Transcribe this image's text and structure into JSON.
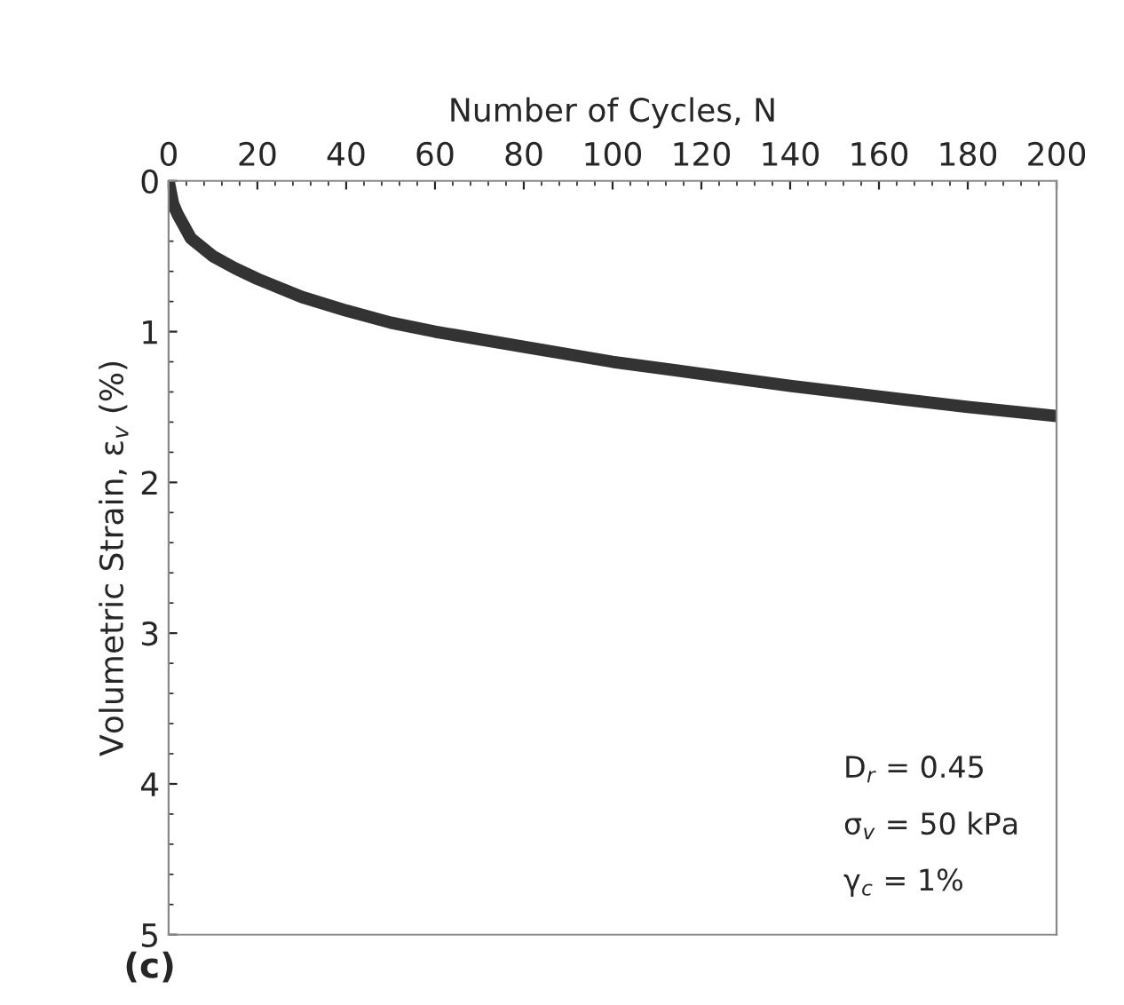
{
  "chart_data": {
    "type": "line",
    "xlabel": "Number of Cycles, N",
    "ylabel": "Volumetric Strain, ε$_{v}$ (%)",
    "x": [
      0,
      1,
      2,
      5,
      10,
      15,
      20,
      30,
      40,
      50,
      60,
      80,
      100,
      120,
      140,
      160,
      180,
      200
    ],
    "series": [
      {
        "color": "#333333",
        "values": [
          0,
          0.15,
          0.22,
          0.38,
          0.5,
          0.58,
          0.65,
          0.77,
          0.86,
          0.94,
          1.0,
          1.1,
          1.2,
          1.28,
          1.36,
          1.43,
          1.5,
          1.56
        ]
      }
    ],
    "xlim": [
      0,
      200
    ],
    "xticks": [
      0,
      20,
      40,
      60,
      80,
      100,
      120,
      140,
      160,
      180,
      200
    ],
    "ylim": [
      5,
      0
    ],
    "yticks": [
      0,
      1,
      2,
      3,
      4,
      5
    ],
    "grid": false,
    "legend": false,
    "annotations": [
      "D$_{r}$ = 0.45",
      "σ$_{v}$ = 50 kPa",
      "γ$_{c}$ = 1%",
      "(c)"
    ]
  }
}
